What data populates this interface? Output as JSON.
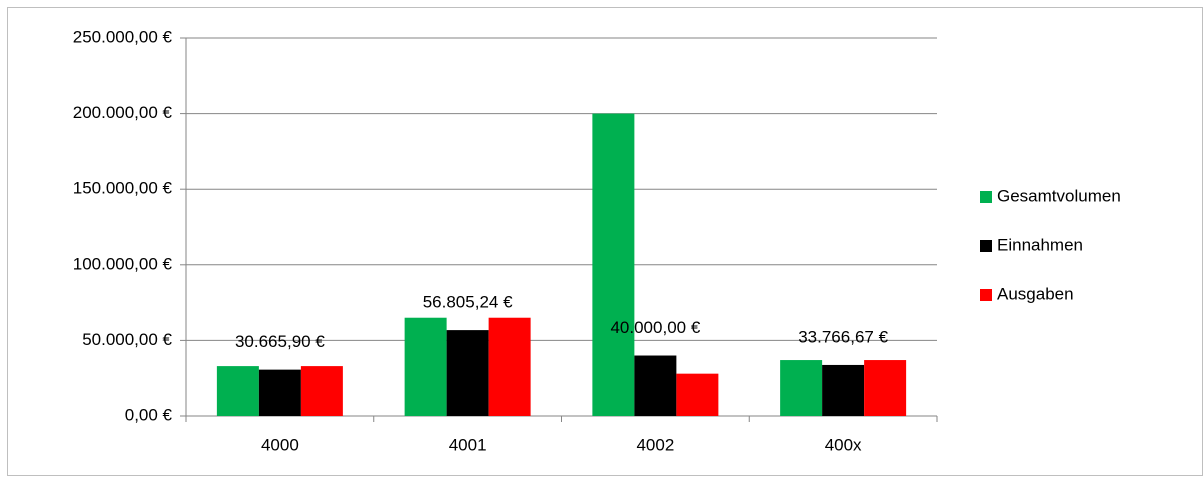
{
  "chart_data": {
    "type": "bar",
    "categories": [
      "4000",
      "4001",
      "4002",
      "400x"
    ],
    "series": [
      {
        "name": "Gesamtvolumen",
        "color": "#00b050",
        "values": [
          33000,
          65000,
          200000,
          37000
        ]
      },
      {
        "name": "Einnahmen",
        "color": "#000000",
        "values": [
          30665.9,
          56805.24,
          40000,
          33766.67
        ],
        "value_labels": [
          "30.665,90 €",
          "56.805,24 €",
          "40.000,00 €",
          "33.766,67 €"
        ]
      },
      {
        "name": "Ausgaben",
        "color": "#ff0000",
        "values": [
          33000,
          65000,
          28000,
          37000
        ]
      }
    ],
    "ylim": [
      0,
      250000
    ],
    "yticks": [
      {
        "value": 0,
        "label": "0,00 €"
      },
      {
        "value": 50000,
        "label": "50.000,00 €"
      },
      {
        "value": 100000,
        "label": "100.000,00 €"
      },
      {
        "value": 150000,
        "label": "150.000,00 €"
      },
      {
        "value": 200000,
        "label": "200.000,00 €"
      },
      {
        "value": 250000,
        "label": "250.000,00 €"
      }
    ],
    "grid": true,
    "legend": "right"
  }
}
